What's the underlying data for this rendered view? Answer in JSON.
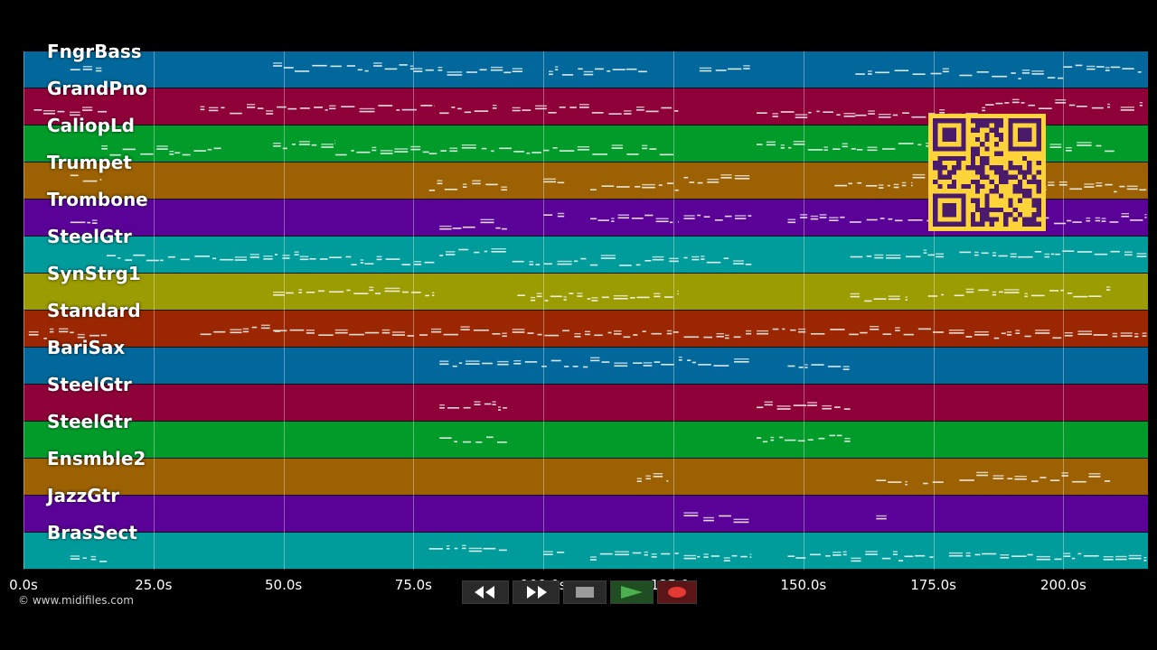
{
  "timeline": {
    "ticks": [
      "0.0s",
      "25.0s",
      "50.0s",
      "75.0s",
      "100.0s",
      "125.0s",
      "150.0s",
      "175.0s",
      "200.0s"
    ],
    "tick_values": [
      0,
      25,
      50,
      75,
      100,
      125,
      150,
      175,
      200
    ],
    "max_seconds": 216
  },
  "tracks": [
    {
      "label": "FngrBass",
      "color": "#02689b",
      "notes": [
        [
          9,
          15
        ],
        [
          48,
          75
        ],
        [
          75,
          96
        ],
        [
          101,
          120
        ],
        [
          130,
          140
        ],
        [
          160,
          178
        ],
        [
          180,
          200
        ],
        [
          200,
          215
        ]
      ]
    },
    {
      "label": "GrandPno",
      "color": "#8e0138",
      "notes": [
        [
          2,
          16
        ],
        [
          34,
          58
        ],
        [
          58,
          79
        ],
        [
          80,
          91
        ],
        [
          94,
          126
        ],
        [
          141,
          160
        ],
        [
          160,
          185
        ],
        [
          185,
          209
        ],
        [
          211,
          216
        ]
      ]
    },
    {
      "label": "CaliopLd",
      "color": "#009b29",
      "notes": [
        [
          15,
          38
        ],
        [
          48,
          60
        ],
        [
          60,
          78
        ],
        [
          78,
          125
        ],
        [
          141,
          172
        ],
        [
          172,
          210
        ]
      ]
    },
    {
      "label": "Trumpet",
      "color": "#9b6102",
      "notes": [
        [
          9,
          15
        ],
        [
          78,
          93
        ],
        [
          100,
          104
        ],
        [
          109,
          126
        ],
        [
          127,
          140
        ],
        [
          156,
          171
        ],
        [
          171,
          190
        ],
        [
          190,
          216
        ]
      ]
    },
    {
      "label": "Trombone",
      "color": "#5a0298",
      "notes": [
        [
          9,
          15
        ],
        [
          80,
          93
        ],
        [
          100,
          104
        ],
        [
          109,
          126
        ],
        [
          127,
          140
        ],
        [
          147,
          175
        ],
        [
          178,
          216
        ]
      ]
    },
    {
      "label": "SteelGtr",
      "color": "#009b9b",
      "notes": [
        [
          16,
          63
        ],
        [
          63,
          79
        ],
        [
          80,
          93
        ],
        [
          94,
          126
        ],
        [
          127,
          140
        ],
        [
          159,
          177
        ],
        [
          180,
          216
        ]
      ]
    },
    {
      "label": "SynStrg1",
      "color": "#9b9b02",
      "notes": [
        [
          48,
          79
        ],
        [
          95,
          126
        ],
        [
          159,
          170
        ],
        [
          174,
          177
        ],
        [
          179,
          209
        ]
      ]
    },
    {
      "label": "Standard",
      "color": "#9b2702",
      "notes": [
        [
          1,
          16
        ],
        [
          34,
          50
        ],
        [
          48,
          93
        ],
        [
          94,
          126
        ],
        [
          127,
          140
        ],
        [
          141,
          177
        ],
        [
          178,
          216
        ]
      ]
    },
    {
      "label": "BariSax",
      "color": "#02689b",
      "notes": [
        [
          80,
          140
        ],
        [
          147,
          159
        ]
      ]
    },
    {
      "label": "SteelGtr",
      "color": "#8e0138",
      "notes": [
        [
          80,
          93
        ],
        [
          141,
          159
        ]
      ]
    },
    {
      "label": "SteelGtr",
      "color": "#009b29",
      "notes": [
        [
          80,
          93
        ],
        [
          141,
          159
        ]
      ]
    },
    {
      "label": "Ensmble2",
      "color": "#9b6102",
      "notes": [
        [
          118,
          124
        ],
        [
          164,
          170
        ],
        [
          173,
          177
        ],
        [
          180,
          209
        ]
      ]
    },
    {
      "label": "JazzGtr",
      "color": "#5a0298",
      "notes": [
        [
          127,
          140
        ],
        [
          164,
          166
        ]
      ]
    },
    {
      "label": "BrasSect",
      "color": "#009b9b",
      "notes": [
        [
          9,
          16
        ],
        [
          78,
          93
        ],
        [
          100,
          104
        ],
        [
          109,
          126
        ],
        [
          127,
          140
        ],
        [
          147,
          175
        ],
        [
          178,
          216
        ]
      ]
    }
  ],
  "copyright": "© www.midifiles.com",
  "controls": [
    {
      "name": "rewind",
      "icon": "rewind-icon",
      "color": "#ffffff",
      "width": 52
    },
    {
      "name": "fast-forward",
      "icon": "fast-forward-icon",
      "color": "#ffffff",
      "width": 52
    },
    {
      "name": "stop",
      "icon": "stop-icon",
      "color": "#9a9a9a",
      "width": 48
    },
    {
      "name": "play",
      "icon": "play-icon",
      "color": "#4caf50",
      "width": 48
    },
    {
      "name": "record",
      "icon": "record-icon",
      "color": "#e53935",
      "width": 44
    }
  ],
  "qr": {
    "icon": "qr-code-icon",
    "background": "#ffd43b",
    "foreground": "#4a1a6b"
  }
}
